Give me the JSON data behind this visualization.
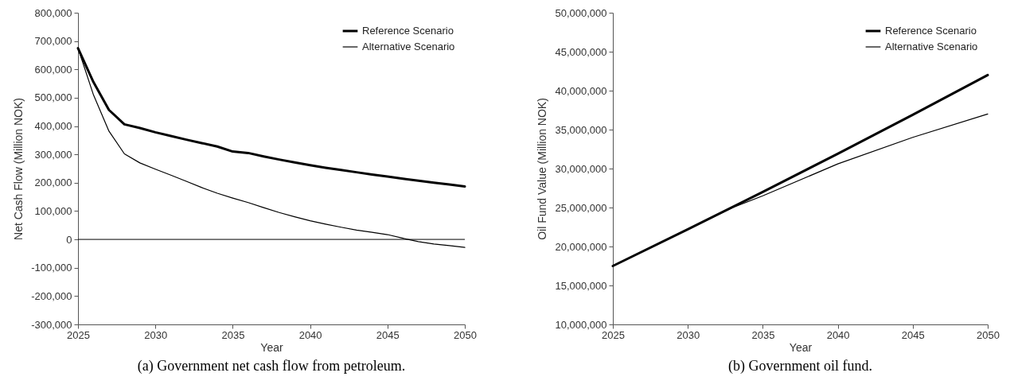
{
  "chart_data": [
    {
      "type": "line",
      "title": "(a) Government net cash flow from petroleum.",
      "xlabel": "Year",
      "ylabel": "Net Cash Flow (Million NOK)",
      "x": [
        2025,
        2026,
        2027,
        2028,
        2029,
        2030,
        2031,
        2032,
        2033,
        2034,
        2035,
        2036,
        2037,
        2038,
        2039,
        2040,
        2041,
        2042,
        2043,
        2044,
        2045,
        2046,
        2047,
        2048,
        2049,
        2050
      ],
      "series": [
        {
          "name": "Reference Scenario",
          "color": "#000000",
          "values": [
            675000,
            555000,
            457000,
            406000,
            393000,
            378000,
            365000,
            352000,
            340000,
            328000,
            310000,
            305000,
            293000,
            282000,
            272000,
            262000,
            253000,
            245000,
            237000,
            229000,
            222000,
            214000,
            207000,
            200000,
            194000,
            187000
          ]
        },
        {
          "name": "Alternative Scenario",
          "color": "#000000",
          "values": [
            675000,
            510000,
            382000,
            302000,
            270000,
            248000,
            227000,
            205000,
            183000,
            163000,
            146000,
            130000,
            112000,
            95000,
            80000,
            66000,
            54000,
            43000,
            33000,
            25000,
            17000,
            4000,
            -8000,
            -16000,
            -22000,
            -28000
          ]
        }
      ],
      "xlim": [
        2025,
        2050
      ],
      "xticks": [
        2025,
        2030,
        2035,
        2040,
        2045,
        2050
      ],
      "ylim": [
        -300000,
        800000
      ],
      "yticks": [
        {
          "value": -300000,
          "label": "-300,000"
        },
        {
          "value": -200000,
          "label": "-200,000"
        },
        {
          "value": -100000,
          "label": "-100,000"
        },
        0,
        {
          "value": 100000,
          "label": "100,000"
        },
        {
          "value": 200000,
          "label": "200,000"
        },
        {
          "value": 300000,
          "label": "300,000"
        },
        {
          "value": 400000,
          "label": "400,000"
        },
        {
          "value": 500000,
          "label": "500,000"
        },
        {
          "value": 600000,
          "label": "600,000"
        },
        {
          "value": 700000,
          "label": "700,000"
        },
        {
          "value": 800000,
          "label": "800,000"
        }
      ],
      "ref_lines": [
        {
          "axis": "y",
          "value": 0,
          "color": "#000000"
        }
      ],
      "legend": "top right"
    },
    {
      "type": "line",
      "title": "(b) Government oil fund.",
      "xlabel": "Year",
      "ylabel": "Oil Fund Value (Million NOK)",
      "series": [
        {
          "name": "Reference Scenario",
          "color": "#000000",
          "x": [
            2025,
            2030,
            2035,
            2040,
            2045,
            2050
          ],
          "values": [
            17500000,
            22200000,
            27000000,
            31900000,
            36900000,
            42000000
          ]
        },
        {
          "name": "Alternative Scenario",
          "color": "#000000",
          "x": [
            2025,
            2030,
            2033,
            2035,
            2040,
            2045,
            2050
          ],
          "values": [
            17500000,
            22200000,
            25000000,
            26500000,
            30600000,
            34000000,
            37000000
          ]
        }
      ],
      "xlim": [
        2025,
        2050
      ],
      "xticks": [
        2025,
        2030,
        2035,
        2040,
        2045,
        2050
      ],
      "ylim": [
        10000000,
        50000000
      ],
      "yticks": [
        {
          "value": 10000000,
          "label": "10,000,000"
        },
        {
          "value": 15000000,
          "label": "15,000,000"
        },
        {
          "value": 20000000,
          "label": "20,000,000"
        },
        {
          "value": 25000000,
          "label": "25,000,000"
        },
        {
          "value": 30000000,
          "label": "30,000,000"
        },
        {
          "value": 35000000,
          "label": "35,000,000"
        },
        {
          "value": 40000000,
          "label": "40,000,000"
        },
        {
          "value": 45000000,
          "label": "45,000,000"
        },
        {
          "value": 50000000,
          "label": "50,000,000"
        }
      ],
      "legend": "top right"
    }
  ]
}
